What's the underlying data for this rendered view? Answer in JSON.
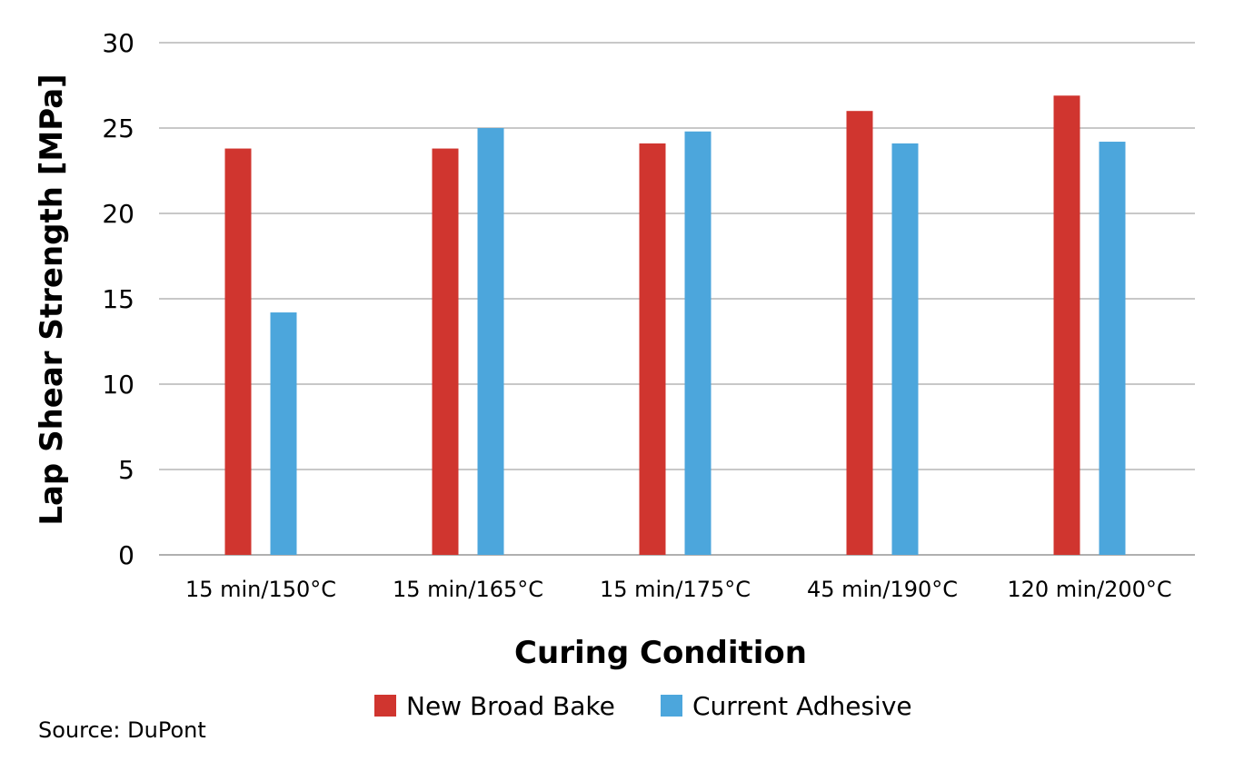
{
  "source": "Source: DuPont",
  "colors": {
    "new_broad_bake": "#d0352f",
    "current_adhesive": "#4ca6dc",
    "grid": "#c8c8c8",
    "axis": "#b0b0b0"
  },
  "chart_data": {
    "type": "bar",
    "title": "",
    "xlabel": "Curing Condition",
    "ylabel": "Lap Shear Strength [MPa]",
    "ylim": [
      0,
      30
    ],
    "yticks": [
      0,
      5,
      10,
      15,
      20,
      25,
      30
    ],
    "grid": true,
    "legend_position": "bottom",
    "categories": [
      "15 min/150°C",
      "15 min/165°C",
      "15 min/175°C",
      "45 min/190°C",
      "120 min/200°C"
    ],
    "series": [
      {
        "name": "New Broad Bake",
        "color": "#d0352f",
        "values": [
          23.8,
          23.8,
          24.1,
          26.0,
          26.9
        ]
      },
      {
        "name": "Current Adhesive",
        "color": "#4ca6dc",
        "values": [
          14.2,
          25.0,
          24.8,
          24.1,
          24.2
        ]
      }
    ]
  }
}
